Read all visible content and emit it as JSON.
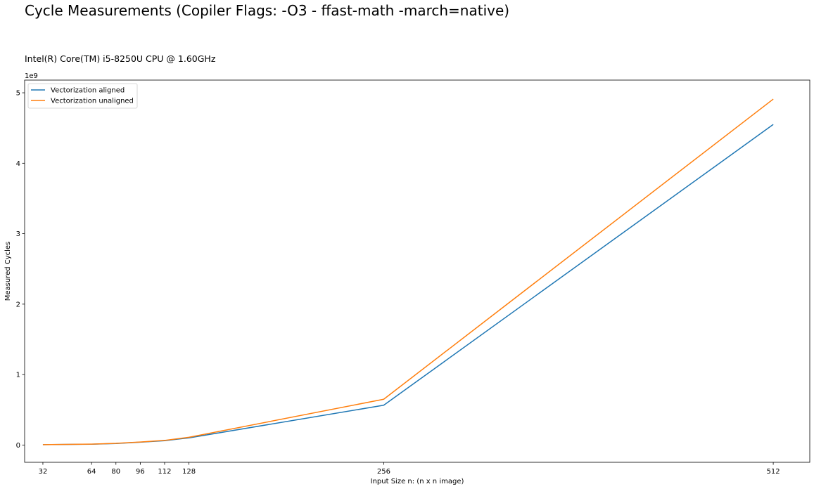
{
  "chart_data": {
    "type": "line",
    "title": "Cycle Measurements (Copiler Flags: -O3 - ffast-math -march=native)",
    "subtitle": "Intel(R) Core(TM) i5-8250U CPU @ 1.60GHz",
    "xlabel": "Input Size n: (n x n image)",
    "ylabel": "Measured Cycles",
    "y_offset_label": "1e9",
    "x": [
      32,
      64,
      80,
      96,
      112,
      128,
      256,
      512
    ],
    "xticks": [
      32,
      64,
      80,
      96,
      112,
      128,
      256,
      512
    ],
    "yticks": [
      0,
      1,
      2,
      3,
      4,
      5
    ],
    "xlim": [
      20,
      536
    ],
    "ylim": [
      -0.245,
      5.18
    ],
    "grid": false,
    "legend_position": "top-left",
    "series": [
      {
        "name": "Vectorization aligned",
        "color": "#1f77b4",
        "values": [
          0.005,
          0.012,
          0.022,
          0.04,
          0.062,
          0.102,
          0.565,
          4.55
        ]
      },
      {
        "name": "Vectorization unaligned",
        "color": "#ff7f0e",
        "values": [
          0.005,
          0.013,
          0.024,
          0.043,
          0.066,
          0.11,
          0.65,
          4.91
        ]
      }
    ]
  }
}
